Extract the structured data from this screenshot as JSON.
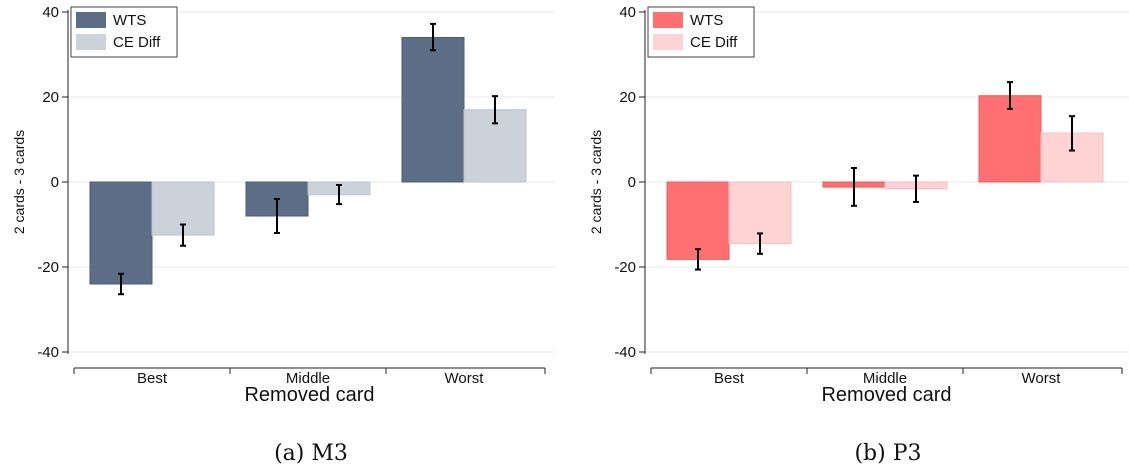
{
  "chart_data": [
    {
      "type": "bar",
      "caption": "(a) M3",
      "xlabel": "Removed card",
      "ylabel": "2 cards - 3 cards",
      "categories": [
        "Best",
        "Middle",
        "Worst"
      ],
      "ylim": [
        -40,
        40
      ],
      "yticks": [
        -40,
        -20,
        0,
        20,
        40
      ],
      "legend_position": "top-left",
      "series": [
        {
          "name": "WTS",
          "color": "#5b6e86",
          "values": [
            -24.0,
            -8.0,
            34.0
          ],
          "err_low": [
            -26.4,
            -12.0,
            31.0
          ],
          "err_high": [
            -21.6,
            -4.0,
            37.2
          ]
        },
        {
          "name": "CE Diff",
          "color": "#ccd2da",
          "values": [
            -12.5,
            -3.0,
            17.0
          ],
          "err_low": [
            -15.0,
            -5.2,
            13.8
          ],
          "err_high": [
            -10.0,
            -0.7,
            20.2
          ]
        }
      ]
    },
    {
      "type": "bar",
      "caption": "(b) P3",
      "xlabel": "Removed card",
      "ylabel": "2 cards - 3 cards",
      "categories": [
        "Best",
        "Middle",
        "Worst"
      ],
      "ylim": [
        -40,
        40
      ],
      "yticks": [
        -40,
        -20,
        0,
        20,
        40
      ],
      "legend_position": "top-left",
      "series": [
        {
          "name": "WTS",
          "color": "#ff7073",
          "values": [
            -18.2,
            -1.2,
            20.3
          ],
          "err_low": [
            -20.6,
            -5.6,
            17.2
          ],
          "err_high": [
            -15.8,
            3.3,
            23.5
          ]
        },
        {
          "name": "CE Diff",
          "color": "#ffd2d3",
          "values": [
            -14.5,
            -1.6,
            11.5
          ],
          "err_low": [
            -16.9,
            -4.7,
            7.4
          ],
          "err_high": [
            -12.1,
            1.5,
            15.5
          ]
        }
      ]
    }
  ]
}
